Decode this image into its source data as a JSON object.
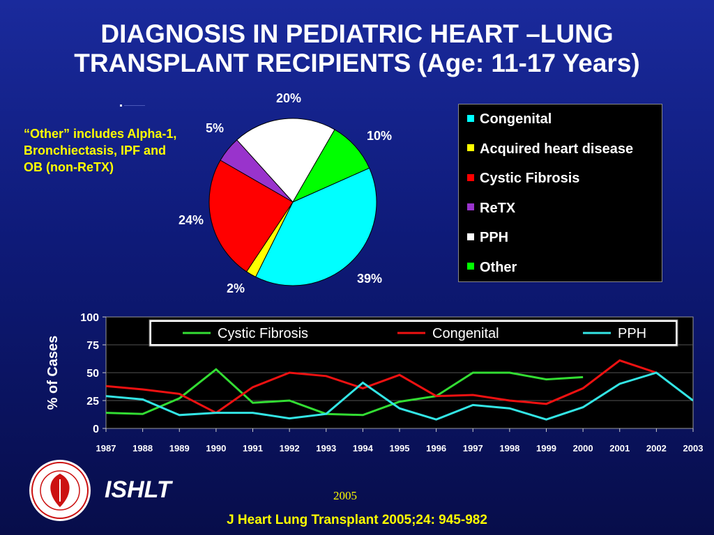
{
  "title_line1": "DIAGNOSIS IN PEDIATRIC HEART –LUNG",
  "title_line2": "TRANSPLANT RECIPIENTS (Age: 11-17 Years)",
  "note": "“Other” includes Alpha-1, Bronchiectasis, IPF and OB (non-ReTX)",
  "footer": {
    "org": "ISHLT",
    "year": "2005",
    "citation": "J Heart Lung Transplant 2005;24: 945-982"
  },
  "logo_icon": "ishlt-seal-logo",
  "chart_data": [
    {
      "type": "pie",
      "legend": [
        {
          "label": "Congenital",
          "color": "#00ffff"
        },
        {
          "label": "Acquired heart disease",
          "color": "#ffff00"
        },
        {
          "label": "Cystic Fibrosis",
          "color": "#ff0000"
        },
        {
          "label": "ReTX",
          "color": "#9933cc"
        },
        {
          "label": "PPH",
          "color": "#ffffff"
        },
        {
          "label": "Other",
          "color": "#00ff00"
        }
      ],
      "slices": [
        {
          "label": "Congenital",
          "value": 39,
          "text": "39%",
          "color": "#00ffff"
        },
        {
          "label": "Acquired heart disease",
          "value": 2,
          "text": "2%",
          "color": "#ffff00"
        },
        {
          "label": "Cystic Fibrosis",
          "value": 24,
          "text": "24%",
          "color": "#ff0000"
        },
        {
          "label": "ReTX",
          "value": 5,
          "text": "5%",
          "color": "#9933cc"
        },
        {
          "label": "PPH",
          "value": 20,
          "text": "20%",
          "color": "#ffffff"
        },
        {
          "label": "Other",
          "value": 10,
          "text": "10%",
          "color": "#00ff00"
        }
      ],
      "legend_placement": "right"
    },
    {
      "type": "line",
      "ylabel": "% of Cases",
      "ylim": [
        0,
        100
      ],
      "yticks": [
        0,
        25,
        50,
        75,
        100
      ],
      "categories": [
        "1987",
        "1988",
        "1989",
        "1990",
        "1991",
        "1992",
        "1993",
        "1994",
        "1995",
        "1996",
        "1997",
        "1998",
        "1999",
        "2000",
        "2001",
        "2002",
        "2003"
      ],
      "grid": true,
      "legend_placement": "top",
      "series": [
        {
          "name": "Cystic Fibrosis",
          "color": "#33dd33",
          "values": [
            14,
            13,
            27,
            53,
            23,
            25,
            13,
            12,
            24,
            29,
            50,
            50,
            44,
            46,
            null,
            null,
            null
          ]
        },
        {
          "name": "Congenital",
          "color": "#ee1111",
          "values": [
            38,
            35,
            31,
            14,
            37,
            50,
            47,
            36,
            48,
            29,
            30,
            25,
            22,
            36,
            61,
            50,
            null
          ]
        },
        {
          "name": "PPH",
          "color": "#33e5e5",
          "values": [
            29,
            26,
            12,
            14,
            14,
            9,
            13,
            41,
            18,
            8,
            21,
            18,
            8,
            19,
            40,
            50,
            25
          ]
        }
      ]
    }
  ]
}
